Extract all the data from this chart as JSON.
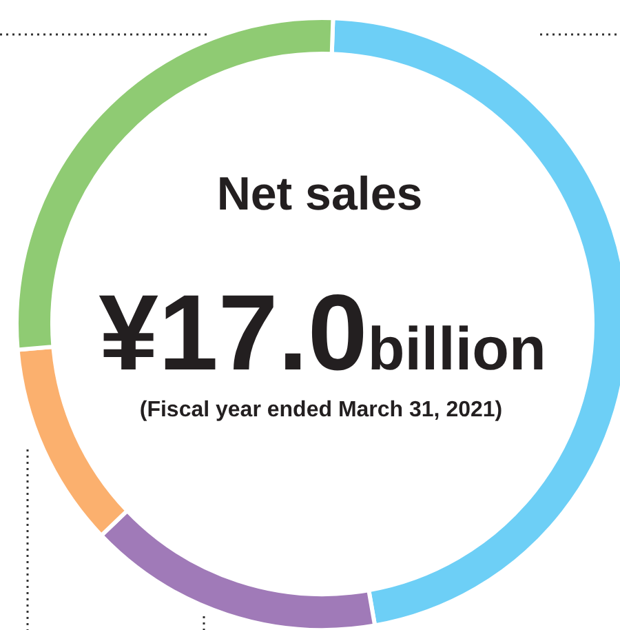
{
  "chart_data": {
    "type": "donut",
    "title": "Net sales",
    "annotations": [
      "¥17.0billion",
      "(Fiscal year ended March 31, 2021)"
    ],
    "categories": [
      null,
      null,
      null,
      null
    ],
    "values": [
      46.7,
      15.6,
      10.8,
      26.9
    ],
    "colors": [
      "#6dcff6",
      "#a07ab8",
      "#fbb06e",
      "#8fcb73"
    ]
  }
}
